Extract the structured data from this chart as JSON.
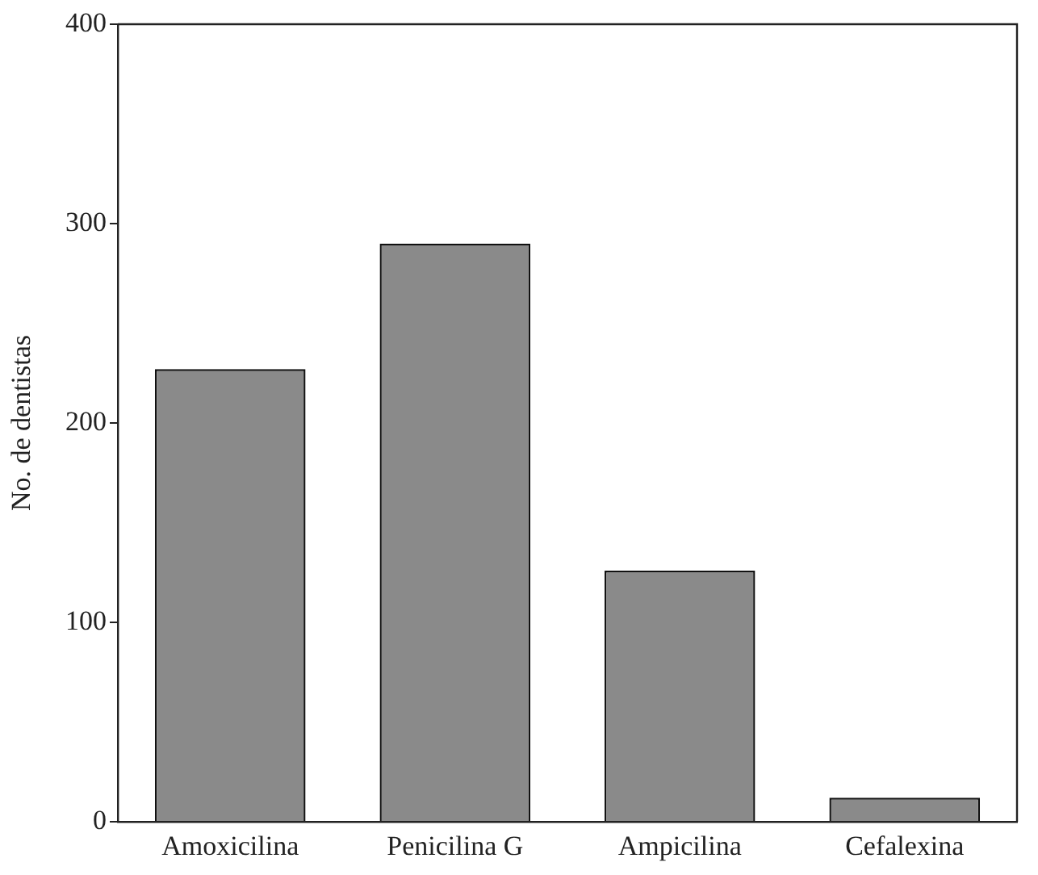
{
  "chart_data": {
    "type": "bar",
    "ylabel": "No. de dentistas",
    "categories": [
      "Amoxicilina",
      "Penicilina G",
      "Ampicilina",
      "Cefalexina"
    ],
    "values": [
      227,
      290,
      126,
      12
    ],
    "color": "#8a8a8a",
    "ylim": [
      0,
      400
    ],
    "yticks": [
      0,
      100,
      200,
      300,
      400
    ],
    "grid": false
  }
}
